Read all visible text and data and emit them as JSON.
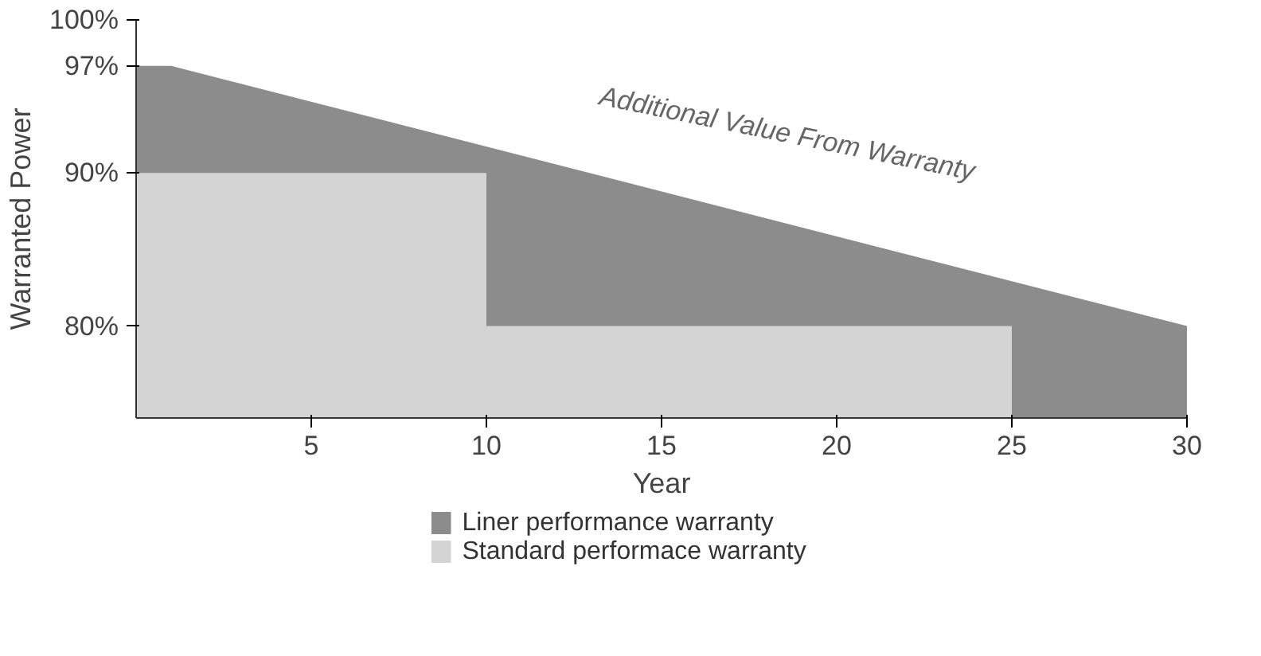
{
  "chart_data": {
    "type": "area",
    "xlabel": "Year",
    "ylabel": "Warranted Power",
    "series": [
      {
        "name": "Liner performance warranty",
        "color": "#8c8c8c",
        "x": [
          0,
          1,
          30
        ],
        "values": [
          97,
          97,
          80
        ]
      },
      {
        "name": "Standard performace warranty",
        "color": "#d4d4d4",
        "x": [
          0,
          10,
          10,
          25
        ],
        "values": [
          90,
          90,
          80,
          80
        ]
      }
    ],
    "xlim": [
      0,
      30
    ],
    "xticks": [
      5,
      10,
      15,
      20,
      25,
      30
    ],
    "ylim": [
      74,
      100
    ],
    "yticks": [
      {
        "value": 80,
        "label": "80%"
      },
      {
        "value": 90,
        "label": "90%"
      },
      {
        "value": 97,
        "label": "97%"
      },
      {
        "value": 100,
        "label": "100%"
      }
    ],
    "annotations": [
      "Additional Value From Warranty"
    ],
    "grid": false,
    "legend": "bottom"
  }
}
